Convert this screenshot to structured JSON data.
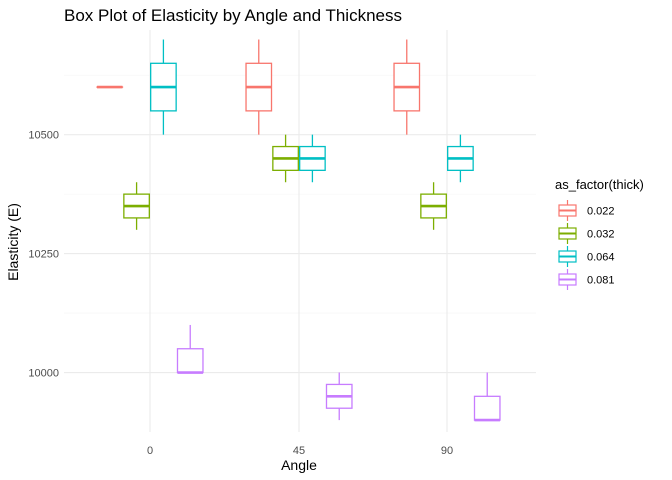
{
  "chart_data": {
    "type": "boxplot",
    "title": "Box Plot of Elasticity by Angle and Thickness",
    "xlabel": "Angle",
    "ylabel": "Elasticity (E)",
    "categories": [
      "0",
      "45",
      "90"
    ],
    "y_ticks": [
      10000,
      10250,
      10500
    ],
    "y_tick_labels": [
      "10000",
      "10250",
      "10500"
    ],
    "ylim": [
      9875,
      10720
    ],
    "grid": true,
    "legend": {
      "title": "as_factor(thick)",
      "position": "right"
    },
    "series": [
      {
        "name": "0.022",
        "color": "#F8766D",
        "boxes": [
          {
            "category": "0",
            "min": 10600,
            "q1": 10600,
            "median": 10600,
            "q3": 10600,
            "max": 10600
          },
          {
            "category": "45",
            "min": 10500,
            "q1": 10550,
            "median": 10600,
            "q3": 10650,
            "max": 10700
          },
          {
            "category": "90",
            "min": 10500,
            "q1": 10550,
            "median": 10600,
            "q3": 10650,
            "max": 10700
          }
        ]
      },
      {
        "name": "0.032",
        "color": "#7CAE00",
        "boxes": [
          {
            "category": "0",
            "min": 10300,
            "q1": 10325,
            "median": 10350,
            "q3": 10375,
            "max": 10400
          },
          {
            "category": "45",
            "min": 10400,
            "q1": 10425,
            "median": 10450,
            "q3": 10475,
            "max": 10500
          },
          {
            "category": "90",
            "min": 10300,
            "q1": 10325,
            "median": 10350,
            "q3": 10375,
            "max": 10400
          }
        ]
      },
      {
        "name": "0.064",
        "color": "#00BFC4",
        "boxes": [
          {
            "category": "0",
            "min": 10500,
            "q1": 10550,
            "median": 10600,
            "q3": 10650,
            "max": 10700
          },
          {
            "category": "45",
            "min": 10400,
            "q1": 10425,
            "median": 10450,
            "q3": 10475,
            "max": 10500
          },
          {
            "category": "90",
            "min": 10400,
            "q1": 10425,
            "median": 10450,
            "q3": 10475,
            "max": 10500
          }
        ]
      },
      {
        "name": "0.081",
        "color": "#C77CFF",
        "boxes": [
          {
            "category": "0",
            "min": 10000,
            "q1": 10000,
            "median": 10000,
            "q3": 10050,
            "max": 10100
          },
          {
            "category": "45",
            "min": 9900,
            "q1": 9925,
            "median": 9950,
            "q3": 9975,
            "max": 10000
          },
          {
            "category": "90",
            "min": 9900,
            "q1": 9900,
            "median": 9900,
            "q3": 9950,
            "max": 10000
          }
        ]
      }
    ]
  }
}
